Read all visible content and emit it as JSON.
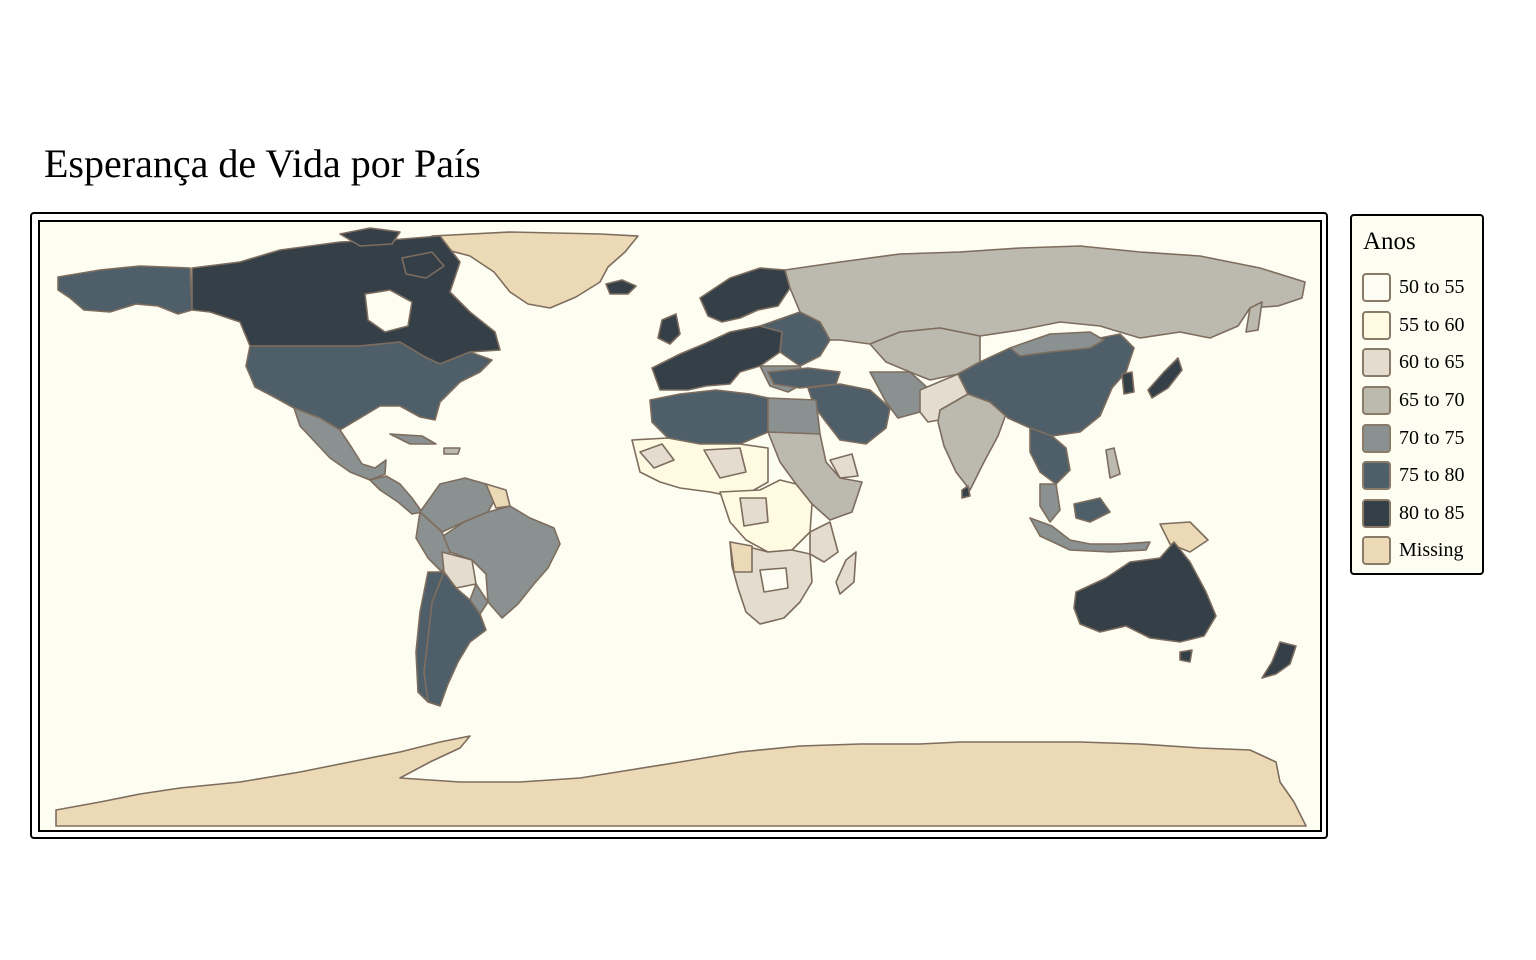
{
  "map": {
    "title": "Esperança de Vida por País",
    "legend": {
      "title": "Anos",
      "items": [
        {
          "label": "50 to 55",
          "color": "#fefdf3"
        },
        {
          "label": "55 to 60",
          "color": "#fefbe2"
        },
        {
          "label": "60 to 65",
          "color": "#e4dccf"
        },
        {
          "label": "65 to 70",
          "color": "#bcbaaf"
        },
        {
          "label": "70 to 75",
          "color": "#8a9190"
        },
        {
          "label": "75 to 80",
          "color": "#4f5f69"
        },
        {
          "label": "80 to 85",
          "color": "#343f48"
        },
        {
          "label": "Missing",
          "color": "#ecd9b5"
        }
      ]
    },
    "colors": {
      "ocean": "#fefdf1",
      "border": "#7d6d5e"
    }
  }
}
